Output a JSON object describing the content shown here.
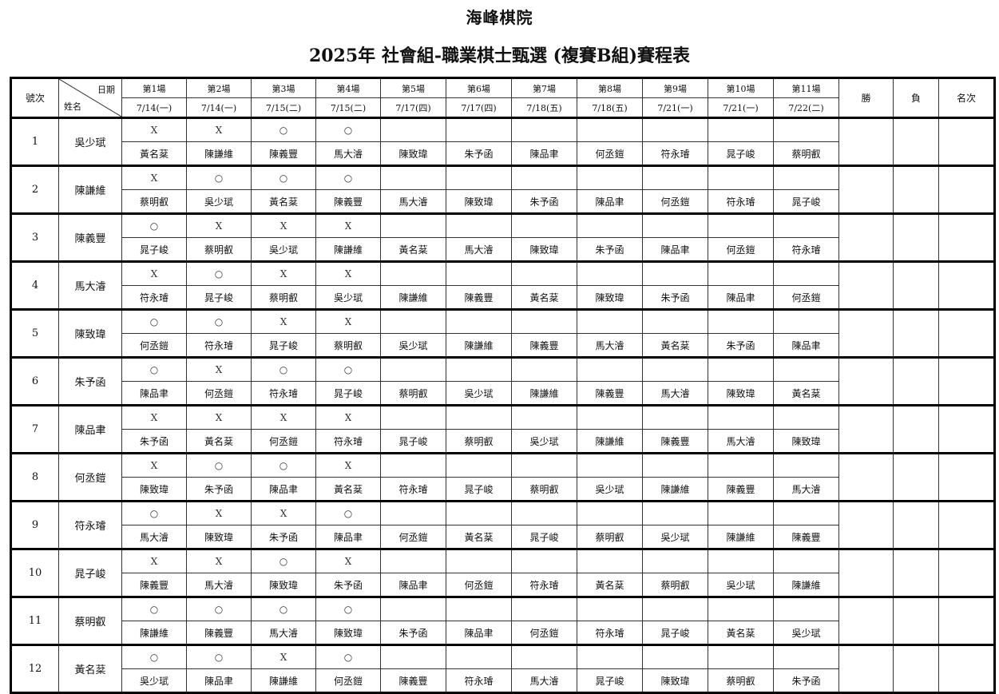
{
  "title": "海峰棋院",
  "subtitle": "2025年 社會組-職業棋士甄選 (複賽B組)賽程表",
  "header": {
    "number_label": "號次",
    "date_label": "日期",
    "name_label": "姓名",
    "win_label": "勝",
    "loss_label": "負",
    "rank_label": "名次",
    "rounds": [
      {
        "label": "第1場",
        "date": "7/14(一)"
      },
      {
        "label": "第2場",
        "date": "7/14(一)"
      },
      {
        "label": "第3場",
        "date": "7/15(二)"
      },
      {
        "label": "第4場",
        "date": "7/15(二)"
      },
      {
        "label": "第5場",
        "date": "7/17(四)"
      },
      {
        "label": "第6場",
        "date": "7/17(四)"
      },
      {
        "label": "第7場",
        "date": "7/18(五)"
      },
      {
        "label": "第8場",
        "date": "7/18(五)"
      },
      {
        "label": "第9場",
        "date": "7/21(一)"
      },
      {
        "label": "第10場",
        "date": "7/21(一)"
      },
      {
        "label": "第11場",
        "date": "7/22(二)"
      }
    ]
  },
  "players": [
    {
      "no": "1",
      "name": "吳少珷",
      "results": [
        "X",
        "X",
        "○",
        "○",
        "",
        "",
        "",
        "",
        "",
        "",
        ""
      ],
      "opponents": [
        "黃名棻",
        "陳謙維",
        "陳義豐",
        "馬大濬",
        "陳致瑋",
        "朱予函",
        "陳品聿",
        "何丞鎧",
        "符永璿",
        "晁子峻",
        "蔡明叡"
      ]
    },
    {
      "no": "2",
      "name": "陳謙維",
      "results": [
        "X",
        "○",
        "○",
        "○",
        "",
        "",
        "",
        "",
        "",
        "",
        ""
      ],
      "opponents": [
        "蔡明叡",
        "吳少珷",
        "黃名棻",
        "陳義豐",
        "馬大濬",
        "陳致瑋",
        "朱予函",
        "陳品聿",
        "何丞鎧",
        "符永璿",
        "晁子峻"
      ]
    },
    {
      "no": "3",
      "name": "陳義豐",
      "results": [
        "○",
        "X",
        "X",
        "X",
        "",
        "",
        "",
        "",
        "",
        "",
        ""
      ],
      "opponents": [
        "晁子峻",
        "蔡明叡",
        "吳少珷",
        "陳謙維",
        "黃名棻",
        "馬大濬",
        "陳致瑋",
        "朱予函",
        "陳品聿",
        "何丞鎧",
        "符永璿"
      ]
    },
    {
      "no": "4",
      "name": "馬大濬",
      "results": [
        "X",
        "○",
        "X",
        "X",
        "",
        "",
        "",
        "",
        "",
        "",
        ""
      ],
      "opponents": [
        "符永璿",
        "晁子峻",
        "蔡明叡",
        "吳少珷",
        "陳謙維",
        "陳義豐",
        "黃名棻",
        "陳致瑋",
        "朱予函",
        "陳品聿",
        "何丞鎧"
      ]
    },
    {
      "no": "5",
      "name": "陳致瑋",
      "results": [
        "○",
        "○",
        "X",
        "X",
        "",
        "",
        "",
        "",
        "",
        "",
        ""
      ],
      "opponents": [
        "何丞鎧",
        "符永璿",
        "晁子峻",
        "蔡明叡",
        "吳少珷",
        "陳謙維",
        "陳義豐",
        "馬大濬",
        "黃名棻",
        "朱予函",
        "陳品聿"
      ]
    },
    {
      "no": "6",
      "name": "朱予函",
      "results": [
        "○",
        "X",
        "○",
        "○",
        "",
        "",
        "",
        "",
        "",
        "",
        ""
      ],
      "opponents": [
        "陳品聿",
        "何丞鎧",
        "符永璿",
        "晁子峻",
        "蔡明叡",
        "吳少珷",
        "陳謙維",
        "陳義豐",
        "馬大濬",
        "陳致瑋",
        "黃名棻"
      ]
    },
    {
      "no": "7",
      "name": "陳品聿",
      "results": [
        "X",
        "X",
        "X",
        "X",
        "",
        "",
        "",
        "",
        "",
        "",
        ""
      ],
      "opponents": [
        "朱予函",
        "黃名棻",
        "何丞鎧",
        "符永璿",
        "晁子峻",
        "蔡明叡",
        "吳少珷",
        "陳謙維",
        "陳義豐",
        "馬大濬",
        "陳致瑋"
      ]
    },
    {
      "no": "8",
      "name": "何丞鎧",
      "results": [
        "X",
        "○",
        "○",
        "X",
        "",
        "",
        "",
        "",
        "",
        "",
        ""
      ],
      "opponents": [
        "陳致瑋",
        "朱予函",
        "陳品聿",
        "黃名棻",
        "符永璿",
        "晁子峻",
        "蔡明叡",
        "吳少珷",
        "陳謙維",
        "陳義豐",
        "馬大濬"
      ]
    },
    {
      "no": "9",
      "name": "符永璿",
      "results": [
        "○",
        "X",
        "X",
        "○",
        "",
        "",
        "",
        "",
        "",
        "",
        ""
      ],
      "opponents": [
        "馬大濬",
        "陳致瑋",
        "朱予函",
        "陳品聿",
        "何丞鎧",
        "黃名棻",
        "晁子峻",
        "蔡明叡",
        "吳少珷",
        "陳謙維",
        "陳義豐"
      ]
    },
    {
      "no": "10",
      "name": "晁子峻",
      "results": [
        "X",
        "X",
        "○",
        "X",
        "",
        "",
        "",
        "",
        "",
        "",
        ""
      ],
      "opponents": [
        "陳義豐",
        "馬大濬",
        "陳致瑋",
        "朱予函",
        "陳品聿",
        "何丞鎧",
        "符永璿",
        "黃名棻",
        "蔡明叡",
        "吳少珷",
        "陳謙維"
      ]
    },
    {
      "no": "11",
      "name": "蔡明叡",
      "results": [
        "○",
        "○",
        "○",
        "○",
        "",
        "",
        "",
        "",
        "",
        "",
        ""
      ],
      "opponents": [
        "陳謙維",
        "陳義豐",
        "馬大濬",
        "陳致瑋",
        "朱予函",
        "陳品聿",
        "何丞鎧",
        "符永璿",
        "晁子峻",
        "黃名棻",
        "吳少珷"
      ]
    },
    {
      "no": "12",
      "name": "黃名棻",
      "results": [
        "○",
        "○",
        "X",
        "○",
        "",
        "",
        "",
        "",
        "",
        "",
        ""
      ],
      "opponents": [
        "吳少珷",
        "陳品聿",
        "陳謙維",
        "何丞鎧",
        "陳義豐",
        "符永璿",
        "馬大濬",
        "晁子峻",
        "陳致瑋",
        "蔡明叡",
        "朱予函"
      ]
    }
  ]
}
